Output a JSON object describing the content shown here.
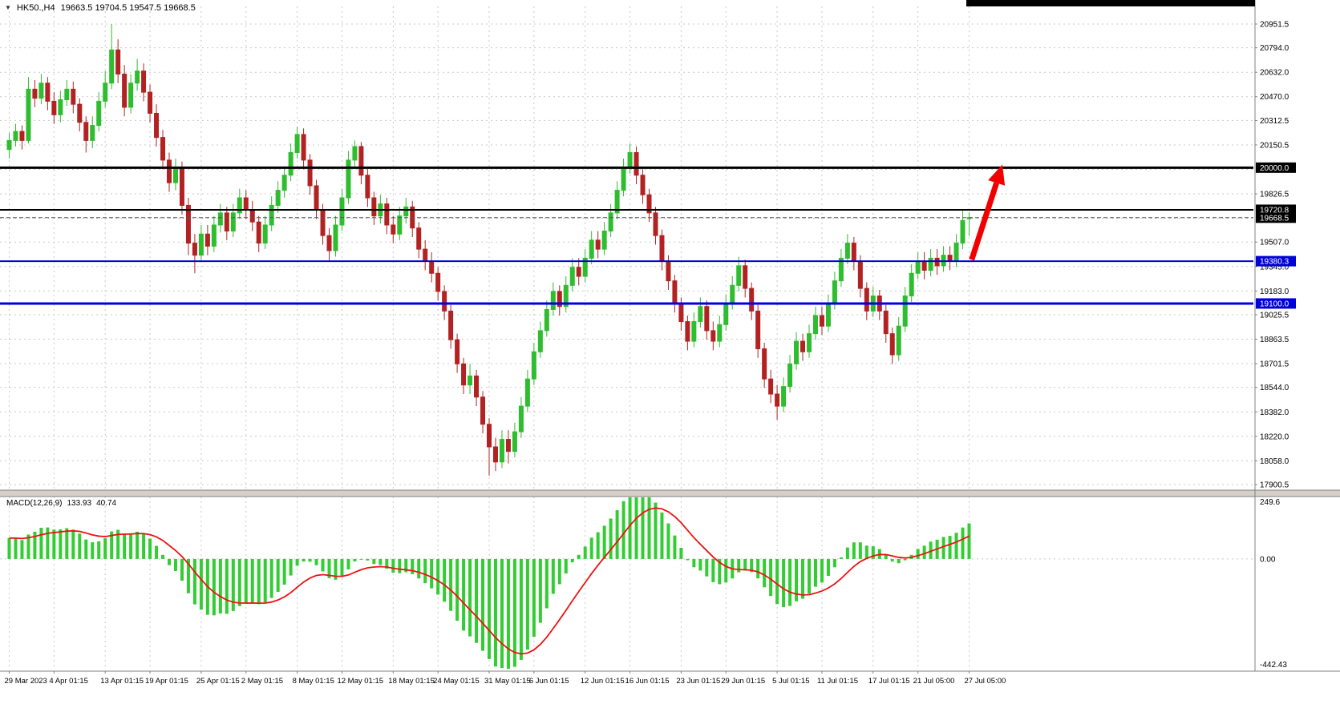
{
  "titlebar": {
    "dropdown_icon": "▼",
    "symbol_period": "HK50.,H4",
    "ohlc": "19663.5 19704.5 19547.5 19668.5"
  },
  "chart_data": {
    "type": "candlestick",
    "symbol": "HK50.",
    "period": "H4",
    "last_bar": {
      "open": 19663.5,
      "high": 19704.5,
      "low": 19547.5,
      "close": 19668.5
    },
    "y_axis": {
      "max": 20951.5,
      "min": 17900.5,
      "ticks": [
        "20951.5",
        "20794.0",
        "20632.0",
        "20470.0",
        "20312.5",
        "20150.5",
        "19826.5",
        "19507.0",
        "19345.0",
        "19183.0",
        "19025.5",
        "18863.5",
        "18701.5",
        "18544.0",
        "18382.0",
        "18220.0",
        "18058.0",
        "17900.5"
      ],
      "hidden_gridlines": [
        19988.5,
        19664.5
      ]
    },
    "x_axis": {
      "labels": [
        {
          "text": "29 Mar 2023",
          "bar": 0
        },
        {
          "text": "4 Apr 01:15",
          "bar": 7
        },
        {
          "text": "13 Apr 01:15",
          "bar": 15
        },
        {
          "text": "19 Apr 01:15",
          "bar": 22
        },
        {
          "text": "25 Apr 01:15",
          "bar": 30
        },
        {
          "text": "2 May 01:15",
          "bar": 37
        },
        {
          "text": "8 May 01:15",
          "bar": 45
        },
        {
          "text": "12 May 01:15",
          "bar": 52
        },
        {
          "text": "18 May 01:15",
          "bar": 60
        },
        {
          "text": "24 May 01:15",
          "bar": 67
        },
        {
          "text": "31 May 01:15",
          "bar": 75
        },
        {
          "text": "6 Jun 01:15",
          "bar": 82
        },
        {
          "text": "12 Jun 01:15",
          "bar": 90
        },
        {
          "text": "16 Jun 01:15",
          "bar": 97
        },
        {
          "text": "23 Jun 01:15",
          "bar": 105
        },
        {
          "text": "29 Jun 01:15",
          "bar": 112
        },
        {
          "text": "5 Jul 01:15",
          "bar": 120
        },
        {
          "text": "11 Jul 01:15",
          "bar": 127
        },
        {
          "text": "17 Jul 01:15",
          "bar": 135
        },
        {
          "text": "21 Jul 05:00",
          "bar": 142
        },
        {
          "text": "27 Jul 05:00",
          "bar": 150
        }
      ]
    },
    "price_lines": [
      {
        "value": 20000.0,
        "label": "20000.0",
        "color": "#000000",
        "width": 3,
        "style": "solid",
        "label_bg": "#000000"
      },
      {
        "value": 19720.8,
        "label": "19720.8",
        "color": "#000000",
        "width": 2,
        "style": "solid",
        "label_bg": "#000000"
      },
      {
        "value": 19668.5,
        "label": "19668.5",
        "color": "#555555",
        "width": 1,
        "style": "dashed",
        "label_bg": "#000000"
      },
      {
        "value": 19380.3,
        "label": "19380.3",
        "color": "#0000D8",
        "width": 2,
        "style": "solid",
        "label_bg": "#0000D8"
      },
      {
        "value": 19100.0,
        "label": "19100.0",
        "color": "#0000D8",
        "width": 3,
        "style": "solid",
        "label_bg": "#0000D8"
      }
    ],
    "arrow": {
      "color": "#F20000",
      "from": {
        "bar": 150.4,
        "price": 19390
      },
      "to": {
        "bar": 155.2,
        "price": 20020
      }
    },
    "colors": {
      "bull": "#2EBD2E",
      "bear": "#B22222",
      "grid": "#C9C9C9",
      "axis_text": "#000000",
      "background": "#FFFFFF"
    },
    "candles": [
      [
        20120,
        20230,
        20060,
        20180
      ],
      [
        20180,
        20290,
        20140,
        20240
      ],
      [
        20240,
        20280,
        20120,
        20180
      ],
      [
        20180,
        20600,
        20160,
        20520
      ],
      [
        20520,
        20580,
        20400,
        20460
      ],
      [
        20460,
        20620,
        20420,
        20560
      ],
      [
        20560,
        20600,
        20380,
        20440
      ],
      [
        20440,
        20500,
        20290,
        20350
      ],
      [
        20350,
        20510,
        20300,
        20450
      ],
      [
        20450,
        20580,
        20410,
        20520
      ],
      [
        20520,
        20570,
        20360,
        20420
      ],
      [
        20420,
        20460,
        20240,
        20300
      ],
      [
        20300,
        20340,
        20100,
        20180
      ],
      [
        20180,
        20340,
        20130,
        20280
      ],
      [
        20280,
        20500,
        20240,
        20440
      ],
      [
        20440,
        20640,
        20400,
        20560
      ],
      [
        20560,
        20951.5,
        20520,
        20780
      ],
      [
        20780,
        20850,
        20560,
        20620
      ],
      [
        20620,
        20680,
        20340,
        20400
      ],
      [
        20400,
        20620,
        20360,
        20560
      ],
      [
        20560,
        20720,
        20510,
        20640
      ],
      [
        20640,
        20690,
        20440,
        20500
      ],
      [
        20500,
        20550,
        20300,
        20360
      ],
      [
        20360,
        20420,
        20140,
        20200
      ],
      [
        20200,
        20250,
        19990,
        20050
      ],
      [
        20050,
        20100,
        19840,
        19900
      ],
      [
        19900,
        20060,
        19850,
        20000
      ],
      [
        20000,
        20040,
        19690,
        19750
      ],
      [
        19750,
        19800,
        19420,
        19500
      ],
      [
        19500,
        19560,
        19300,
        19420
      ],
      [
        19420,
        19620,
        19380,
        19560
      ],
      [
        19560,
        19620,
        19420,
        19480
      ],
      [
        19480,
        19680,
        19440,
        19620
      ],
      [
        19620,
        19760,
        19570,
        19700
      ],
      [
        19700,
        19740,
        19520,
        19580
      ],
      [
        19580,
        19760,
        19540,
        19700
      ],
      [
        19700,
        19860,
        19660,
        19800
      ],
      [
        19800,
        19850,
        19660,
        19720
      ],
      [
        19720,
        19780,
        19580,
        19640
      ],
      [
        19640,
        19680,
        19440,
        19500
      ],
      [
        19500,
        19680,
        19460,
        19620
      ],
      [
        19620,
        19810,
        19580,
        19750
      ],
      [
        19750,
        19910,
        19700,
        19850
      ],
      [
        19850,
        20010,
        19800,
        19950
      ],
      [
        19950,
        20160,
        19910,
        20100
      ],
      [
        20100,
        20270,
        20060,
        20220
      ],
      [
        20220,
        20260,
        19990,
        20050
      ],
      [
        20050,
        20090,
        19820,
        19880
      ],
      [
        19880,
        19920,
        19660,
        19720
      ],
      [
        19720,
        19760,
        19490,
        19550
      ],
      [
        19550,
        19600,
        19380,
        19450
      ],
      [
        19450,
        19680,
        19410,
        19620
      ],
      [
        19620,
        19860,
        19580,
        19800
      ],
      [
        19800,
        20110,
        19760,
        20050
      ],
      [
        20050,
        20180,
        19990,
        20140
      ],
      [
        20140,
        20170,
        19890,
        19950
      ],
      [
        19950,
        19990,
        19740,
        19800
      ],
      [
        19800,
        19840,
        19620,
        19680
      ],
      [
        19680,
        19820,
        19630,
        19760
      ],
      [
        19760,
        19800,
        19560,
        19620
      ],
      [
        19620,
        19680,
        19500,
        19560
      ],
      [
        19560,
        19740,
        19520,
        19680
      ],
      [
        19680,
        19800,
        19630,
        19740
      ],
      [
        19740,
        19780,
        19540,
        19600
      ],
      [
        19600,
        19640,
        19400,
        19460
      ],
      [
        19460,
        19520,
        19320,
        19380
      ],
      [
        19380,
        19440,
        19240,
        19300
      ],
      [
        19300,
        19340,
        19120,
        19180
      ],
      [
        19180,
        19220,
        18990,
        19050
      ],
      [
        19050,
        19090,
        18800,
        18860
      ],
      [
        18860,
        18900,
        18640,
        18700
      ],
      [
        18700,
        18740,
        18500,
        18560
      ],
      [
        18560,
        18700,
        18500,
        18620
      ],
      [
        18620,
        18660,
        18420,
        18480
      ],
      [
        18480,
        18520,
        18240,
        18300
      ],
      [
        18300,
        18340,
        17960,
        18150
      ],
      [
        18150,
        18210,
        17990,
        18050
      ],
      [
        18050,
        18260,
        18010,
        18200
      ],
      [
        18200,
        18260,
        18040,
        18120
      ],
      [
        18120,
        18310,
        18080,
        18250
      ],
      [
        18250,
        18480,
        18210,
        18420
      ],
      [
        18420,
        18660,
        18380,
        18600
      ],
      [
        18600,
        18840,
        18560,
        18780
      ],
      [
        18780,
        18980,
        18740,
        18920
      ],
      [
        18920,
        19120,
        18880,
        19060
      ],
      [
        19060,
        19240,
        19020,
        19180
      ],
      [
        19180,
        19220,
        19020,
        19080
      ],
      [
        19080,
        19280,
        19040,
        19220
      ],
      [
        19220,
        19400,
        19180,
        19340
      ],
      [
        19340,
        19400,
        19220,
        19280
      ],
      [
        19280,
        19460,
        19240,
        19400
      ],
      [
        19400,
        19580,
        19360,
        19520
      ],
      [
        19520,
        19580,
        19400,
        19460
      ],
      [
        19460,
        19640,
        19420,
        19580
      ],
      [
        19580,
        19760,
        19540,
        19700
      ],
      [
        19700,
        19910,
        19660,
        19850
      ],
      [
        19850,
        20060,
        19810,
        20000
      ],
      [
        20000,
        20160,
        19960,
        20100
      ],
      [
        20100,
        20140,
        19890,
        19950
      ],
      [
        19950,
        19990,
        19760,
        19820
      ],
      [
        19820,
        19860,
        19640,
        19700
      ],
      [
        19700,
        19740,
        19490,
        19550
      ],
      [
        19550,
        19590,
        19320,
        19380
      ],
      [
        19380,
        19420,
        19190,
        19250
      ],
      [
        19250,
        19290,
        19040,
        19100
      ],
      [
        19100,
        19140,
        18920,
        18980
      ],
      [
        18980,
        19020,
        18790,
        18850
      ],
      [
        18850,
        19040,
        18810,
        18980
      ],
      [
        18980,
        19140,
        18940,
        19080
      ],
      [
        19080,
        19120,
        18860,
        18920
      ],
      [
        18920,
        18980,
        18790,
        18850
      ],
      [
        18850,
        19020,
        18810,
        18960
      ],
      [
        18960,
        19160,
        18920,
        19100
      ],
      [
        19100,
        19280,
        19060,
        19220
      ],
      [
        19220,
        19410,
        19180,
        19350
      ],
      [
        19350,
        19390,
        19140,
        19200
      ],
      [
        19200,
        19240,
        18990,
        19050
      ],
      [
        19050,
        19090,
        18740,
        18800
      ],
      [
        18800,
        18840,
        18540,
        18600
      ],
      [
        18600,
        18660,
        18440,
        18500
      ],
      [
        18500,
        18560,
        18330,
        18420
      ],
      [
        18420,
        18610,
        18380,
        18550
      ],
      [
        18550,
        18760,
        18510,
        18700
      ],
      [
        18700,
        18910,
        18660,
        18850
      ],
      [
        18850,
        18900,
        18720,
        18780
      ],
      [
        18780,
        18960,
        18740,
        18900
      ],
      [
        18900,
        19080,
        18860,
        19020
      ],
      [
        19020,
        19080,
        18890,
        18950
      ],
      [
        18950,
        19160,
        18910,
        19100
      ],
      [
        19100,
        19310,
        19060,
        19250
      ],
      [
        19250,
        19460,
        19210,
        19400
      ],
      [
        19400,
        19560,
        19360,
        19500
      ],
      [
        19500,
        19540,
        19320,
        19380
      ],
      [
        19380,
        19420,
        19140,
        19200
      ],
      [
        19200,
        19240,
        18990,
        19050
      ],
      [
        19050,
        19210,
        19010,
        19150
      ],
      [
        19150,
        19190,
        18990,
        19050
      ],
      [
        19050,
        19090,
        18840,
        18900
      ],
      [
        18900,
        18940,
        18700,
        18760
      ],
      [
        18760,
        19010,
        18720,
        18950
      ],
      [
        18950,
        19210,
        18910,
        19150
      ],
      [
        19150,
        19360,
        19110,
        19300
      ],
      [
        19300,
        19440,
        19260,
        19380
      ],
      [
        19380,
        19440,
        19260,
        19320
      ],
      [
        19320,
        19460,
        19280,
        19400
      ],
      [
        19400,
        19460,
        19290,
        19350
      ],
      [
        19350,
        19480,
        19310,
        19420
      ],
      [
        19420,
        19480,
        19320,
        19380
      ],
      [
        19380,
        19560,
        19340,
        19500
      ],
      [
        19500,
        19720,
        19460,
        19650
      ],
      [
        19663.5,
        19704.5,
        19547.5,
        19668.5
      ]
    ]
  },
  "macd_pane": {
    "indicator_label": "MACD(12,26,9)",
    "macd_value": "133.93",
    "signal_value": "40.74",
    "params": {
      "fast": 12,
      "slow": 26,
      "signal": 9
    },
    "axis_ticks": {
      "top": "249.6",
      "zero": "0.00",
      "bottom": "-442.43"
    },
    "colors": {
      "histogram": "#32CD32",
      "signal": "#EE1111"
    }
  }
}
